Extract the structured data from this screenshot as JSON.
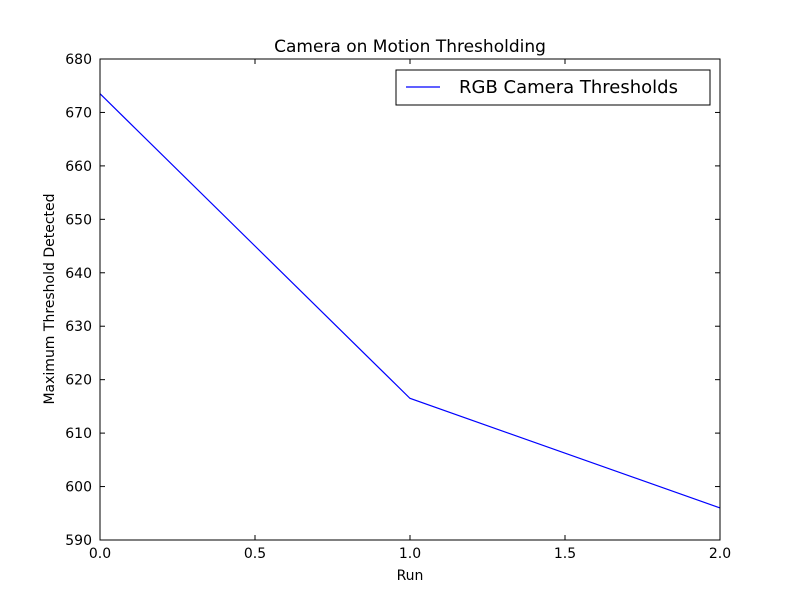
{
  "chart_data": {
    "type": "line",
    "title": "Camera on Motion Thresholding",
    "xlabel": "Run",
    "ylabel": "Maximum Threshold Detected",
    "xlim": [
      0.0,
      2.0
    ],
    "ylim": [
      590,
      680
    ],
    "x_ticks": [
      "0.0",
      "0.5",
      "1.0",
      "1.5",
      "2.0"
    ],
    "y_ticks": [
      "590",
      "600",
      "610",
      "620",
      "630",
      "640",
      "650",
      "660",
      "670",
      "680"
    ],
    "grid": false,
    "legend_position": "top-right",
    "series": [
      {
        "name": "RGB Camera Thresholds",
        "color": "#0000ff",
        "x": [
          0,
          1,
          2
        ],
        "y": [
          673.5,
          616.5,
          596.0
        ]
      }
    ]
  }
}
